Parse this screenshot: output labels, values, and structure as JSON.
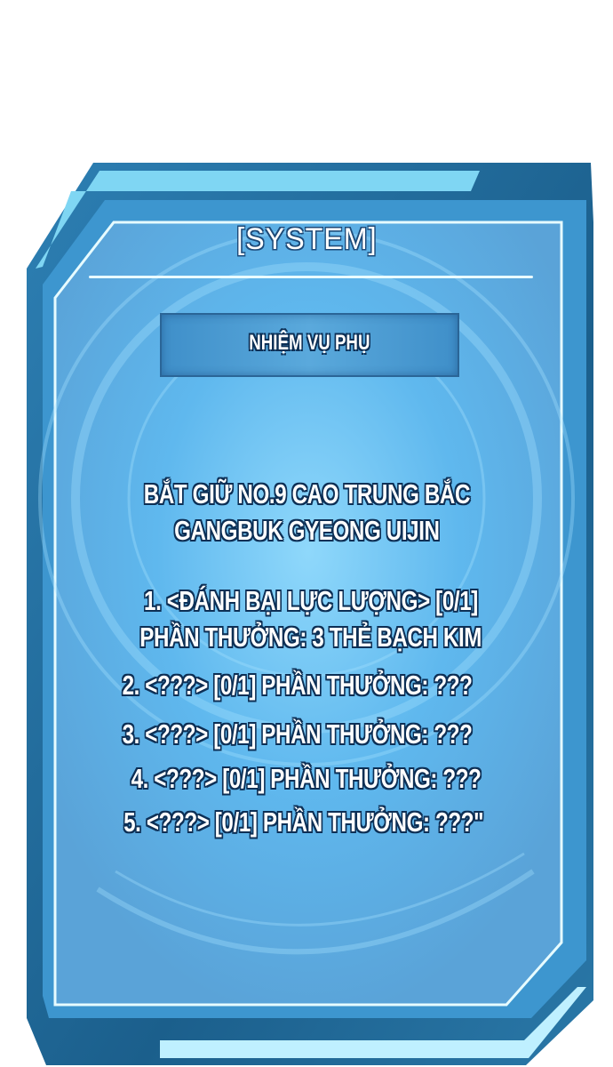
{
  "panel": {
    "title": "[SYSTEM]",
    "subtitle": "NHIỆM VỤ PHỤ",
    "mission_lines": [
      "BẮT GIỮ NO.9 CAO TRUNG BẮC",
      "GANGBUK GYEONG UIJIN"
    ],
    "quests": [
      "1. <ĐÁNH BẠI LỰC LƯỢNG> [0/1]",
      "PHẦN THƯỞNG: 3 THẺ BẠCH KIM",
      "2. <???> [0/1] PHẦN THƯỞNG: ???",
      "3. <???> [0/1] PHẦN THƯỞNG: ???",
      "4. <???> [0/1] PHẦN THƯỞNG: ???",
      "5. <???> [0/1] PHẦN THƯỞNG: ???\""
    ],
    "colors": {
      "panel": "#5aaee6",
      "frame_dark": "#1a5f8c",
      "frame_light": "#bff0ff",
      "text_outline": "#0d2f55"
    }
  }
}
